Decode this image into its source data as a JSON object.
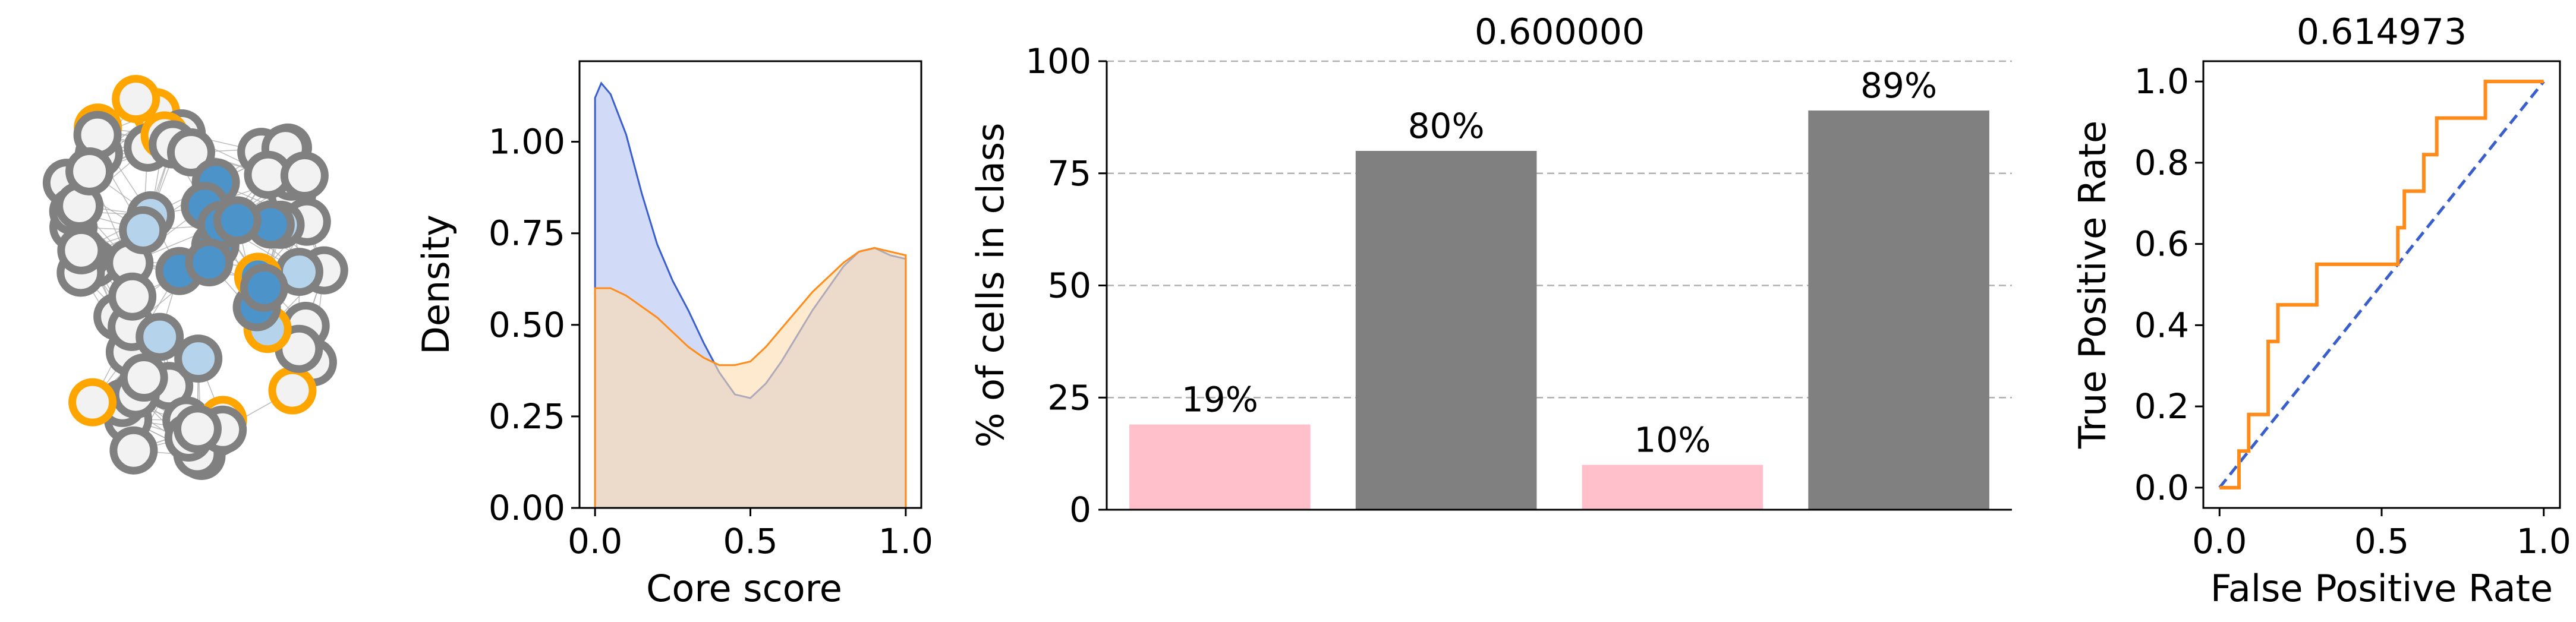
{
  "colors": {
    "network_edge": "#b0b0b0",
    "node_fill_light": "#f2f2f2",
    "node_fill_core": "#4b93c8",
    "node_fill_mid": "#b5d3ea",
    "node_ring_gray": "#808080",
    "node_ring_orange": "#ffa500",
    "density_a_line": "#3a5fcd",
    "density_a_fill": "#c9d4f5",
    "density_b_line": "#ff8c1a",
    "density_b_fill": "#fddcae",
    "bar_pink": "#ffc0cb",
    "bar_gray": "#808080",
    "roc_line": "#ff8c1a",
    "diag_line": "#3a5fcd",
    "grid": "#b0b0b0"
  },
  "network": {
    "description_kind": "node-link network of core/periphery cells",
    "node_count_visible": 70
  },
  "chart_data": [
    {
      "type": "area",
      "xlabel": "Core score",
      "ylabel": "Density",
      "xlim": [
        -0.05,
        1.05
      ],
      "ylim": [
        0,
        1.22
      ],
      "xticks": [
        "0.0",
        "0.5",
        "1.0"
      ],
      "yticks": [
        "0.00",
        "0.25",
        "0.50",
        "0.75",
        "1.00"
      ],
      "x": [
        0.0,
        0.02,
        0.05,
        0.1,
        0.15,
        0.2,
        0.25,
        0.3,
        0.35,
        0.4,
        0.45,
        0.5,
        0.55,
        0.6,
        0.65,
        0.7,
        0.75,
        0.8,
        0.85,
        0.9,
        0.95,
        1.0
      ],
      "series": [
        {
          "values": [
            1.12,
            1.16,
            1.13,
            1.02,
            0.86,
            0.72,
            0.62,
            0.54,
            0.45,
            0.37,
            0.31,
            0.3,
            0.34,
            0.4,
            0.47,
            0.54,
            0.6,
            0.66,
            0.7,
            0.71,
            0.69,
            0.68
          ]
        },
        {
          "values": [
            0.6,
            0.6,
            0.6,
            0.58,
            0.55,
            0.52,
            0.48,
            0.44,
            0.41,
            0.39,
            0.39,
            0.4,
            0.44,
            0.49,
            0.54,
            0.59,
            0.63,
            0.67,
            0.7,
            0.71,
            0.7,
            0.69
          ]
        }
      ]
    },
    {
      "type": "bar",
      "title": "0.600000",
      "ylabel": "% of cells in class",
      "ylim": [
        0,
        100
      ],
      "yticks": [
        "0",
        "25",
        "50",
        "75",
        "100"
      ],
      "grid": "horizontal dashed",
      "categories": [
        "",
        "",
        "",
        ""
      ],
      "values": [
        19,
        80,
        10,
        89
      ],
      "data_labels": [
        "19%",
        "80%",
        "10%",
        "89%"
      ],
      "bar_colors": [
        "pink",
        "gray",
        "pink",
        "gray"
      ]
    },
    {
      "type": "line",
      "title": "0.614973",
      "xlabel": "False Positive Rate",
      "ylabel": "True Positive Rate",
      "xlim": [
        -0.05,
        1.05
      ],
      "ylim": [
        -0.05,
        1.05
      ],
      "xticks": [
        "0.0",
        "0.5",
        "1.0"
      ],
      "yticks": [
        "0.0",
        "0.2",
        "0.4",
        "0.6",
        "0.8",
        "1.0"
      ],
      "series": [
        {
          "x": [
            0.0,
            0.0,
            0.06,
            0.06,
            0.09,
            0.09,
            0.09,
            0.15,
            0.15,
            0.18,
            0.18,
            0.3,
            0.3,
            0.55,
            0.55,
            0.57,
            0.57,
            0.63,
            0.63,
            0.67,
            0.67,
            0.82,
            0.82,
            1.0
          ],
          "y": [
            0.0,
            0.0,
            0.0,
            0.09,
            0.09,
            0.18,
            0.18,
            0.18,
            0.36,
            0.36,
            0.45,
            0.45,
            0.55,
            0.55,
            0.64,
            0.64,
            0.73,
            0.73,
            0.82,
            0.82,
            0.91,
            0.91,
            1.0,
            1.0
          ]
        },
        {
          "x": [
            0,
            1
          ],
          "y": [
            0,
            1
          ],
          "style": "dashed"
        }
      ]
    }
  ]
}
